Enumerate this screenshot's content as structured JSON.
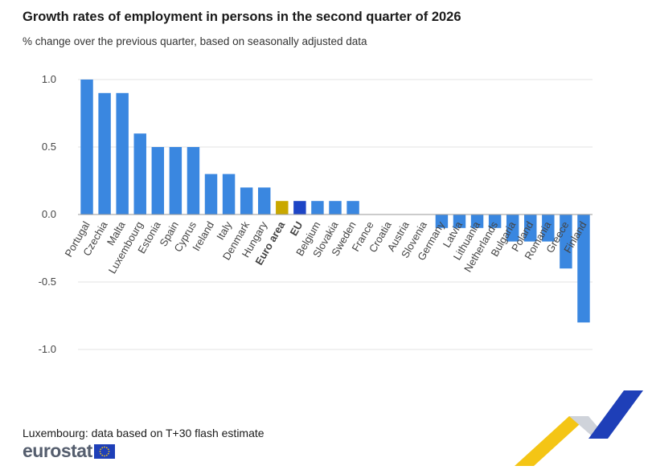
{
  "header": {
    "title": "Growth rates of employment in persons in the second quarter of 2026",
    "subtitle": "% change over the previous quarter, based on seasonally adjusted data"
  },
  "footer": {
    "note": "Luxembourg: data based on T+30 flash estimate",
    "logo_text": "eurostat"
  },
  "colors": {
    "country": "#3a87e0",
    "euro_area": "#c9a800",
    "eu": "#1d45c6",
    "grid": "#e3e3e3",
    "axis": "#999999",
    "label": "#444444",
    "decor_yellow": "#f4c515",
    "decor_blue": "#1e3fb8"
  },
  "chart_data": {
    "type": "bar",
    "categories": [
      "Portugal",
      "Czechia",
      "Malta",
      "Luxembourg",
      "Estonia",
      "Spain",
      "Cyprus",
      "Ireland",
      "Italy",
      "Denmark",
      "Hungary",
      "Euro area",
      "EU",
      "Belgium",
      "Slovakia",
      "Sweden",
      "France",
      "Croatia",
      "Austria",
      "Slovenia",
      "Germany",
      "Latvia",
      "Lithuania",
      "Netherlands",
      "Bulgaria",
      "Poland",
      "Romania",
      "Greece",
      "Finland"
    ],
    "values": [
      1.0,
      0.9,
      0.9,
      0.6,
      0.5,
      0.5,
      0.5,
      0.3,
      0.3,
      0.2,
      0.2,
      0.1,
      0.1,
      0.1,
      0.1,
      0.1,
      0.0,
      0.0,
      0.0,
      0.0,
      -0.1,
      -0.1,
      -0.1,
      -0.1,
      -0.2,
      -0.2,
      -0.2,
      -0.4,
      -0.8
    ],
    "highlight": {
      "Euro area": "euro_area",
      "EU": "eu"
    },
    "bold_categories": [
      "Euro area",
      "EU"
    ],
    "yticks": [
      1.0,
      0.5,
      0.0,
      -0.5,
      -1.0
    ],
    "ytick_labels": [
      "1.0",
      "0.5",
      "0.0",
      "-0.5",
      "-1.0"
    ],
    "ylim": [
      -1.0,
      1.0
    ],
    "grid": true,
    "legend": "none"
  }
}
